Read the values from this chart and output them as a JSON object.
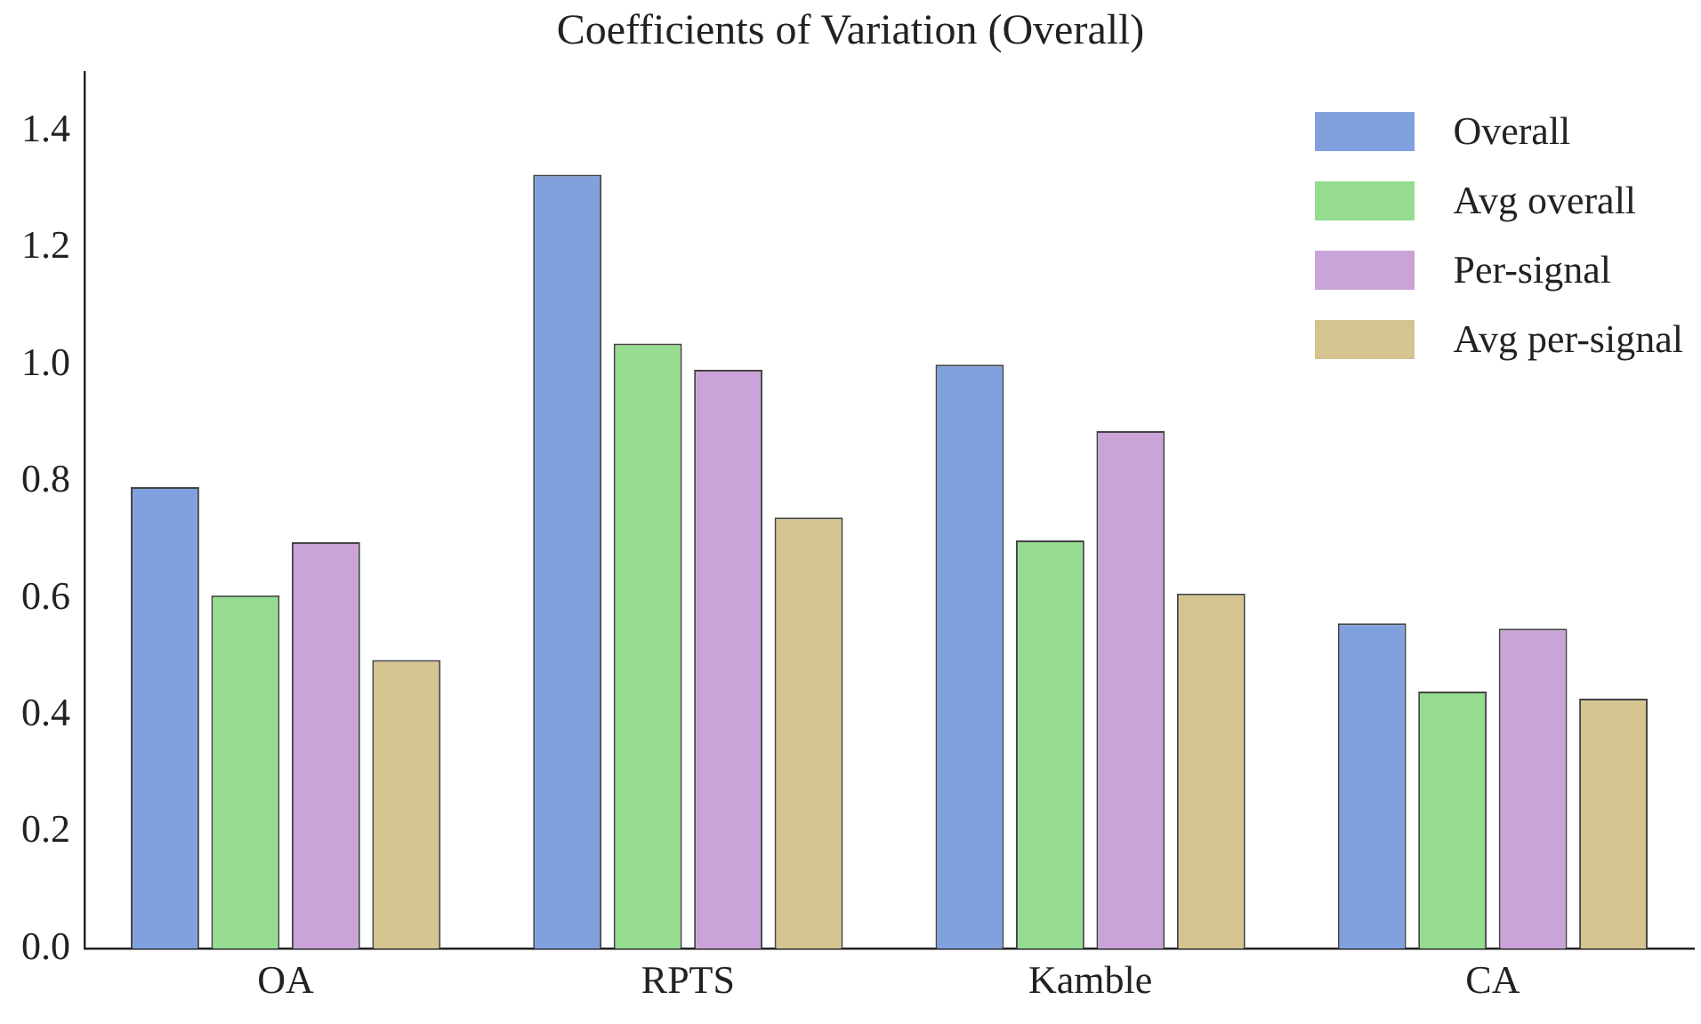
{
  "chart_data": {
    "type": "bar",
    "title": "Coefficients of Variation (Overall)",
    "categories": [
      "OA",
      "RPTS",
      "Kamble",
      "CA"
    ],
    "series": [
      {
        "name": "Overall",
        "color": "#80a0de",
        "values": [
          0.79,
          1.325,
          1.0,
          0.557
        ]
      },
      {
        "name": "Avg overall",
        "color": "#95dc91",
        "values": [
          0.605,
          1.036,
          0.699,
          0.44
        ]
      },
      {
        "name": "Per-signal",
        "color": "#caa3d8",
        "values": [
          0.696,
          0.991,
          0.886,
          0.548
        ]
      },
      {
        "name": "Avg per-signal",
        "color": "#d5c490",
        "values": [
          0.494,
          0.738,
          0.608,
          0.428
        ]
      }
    ],
    "ylim": [
      0,
      1.5
    ],
    "yticks": [
      {
        "value": 0,
        "label": "0.0"
      },
      {
        "value": 0.2,
        "label": "0.2"
      },
      {
        "value": 0.4,
        "label": "0.4"
      },
      {
        "value": 0.6,
        "label": "0.6"
      },
      {
        "value": 0.8,
        "label": "0.8"
      },
      {
        "value": 1,
        "label": "1.0"
      },
      {
        "value": 1.2,
        "label": "1.2"
      },
      {
        "value": 1.4,
        "label": "1.4"
      }
    ],
    "grid": false,
    "legend": "top right"
  }
}
